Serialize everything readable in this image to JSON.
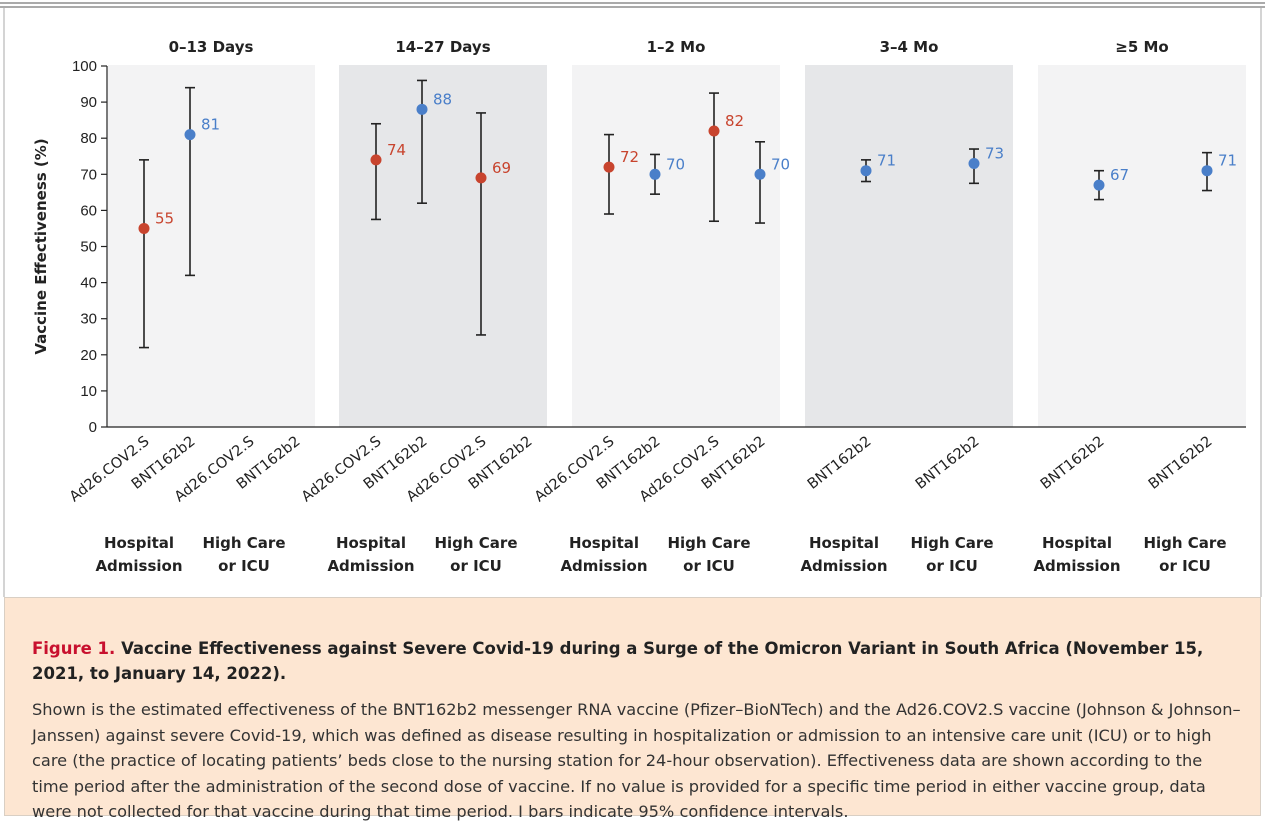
{
  "chart_data": {
    "type": "scatter",
    "ylabel": "Vaccine Effectiveness (%)",
    "ylim": [
      0,
      100
    ],
    "yticks": [
      0,
      10,
      20,
      30,
      40,
      50,
      60,
      70,
      80,
      90,
      100
    ],
    "grid": false,
    "colors": {
      "Ad26.COV2.S": "#c8442e",
      "BNT162b2": "#4a7fc9"
    },
    "panels": [
      {
        "title": "0–13 Days",
        "shaded": false,
        "categories": [
          "Ad26.COV2.S",
          "BNT162b2",
          "Ad26.COV2.S",
          "BNT162b2"
        ],
        "groups": [
          {
            "line1": "Hospital",
            "line2": "Admission"
          },
          {
            "line1": "High Care",
            "line2": "or ICU"
          }
        ],
        "points": [
          {
            "slot": 0,
            "vaccine": "Ad26.COV2.S",
            "value": 55,
            "low": 22,
            "high": 74,
            "label": "55"
          },
          {
            "slot": 1,
            "vaccine": "BNT162b2",
            "value": 81,
            "low": 42,
            "high": 94,
            "label": "81"
          }
        ]
      },
      {
        "title": "14–27 Days",
        "shaded": true,
        "categories": [
          "Ad26.COV2.S",
          "BNT162b2",
          "Ad26.COV2.S",
          "BNT162b2"
        ],
        "groups": [
          {
            "line1": "Hospital",
            "line2": "Admission"
          },
          {
            "line1": "High Care",
            "line2": "or ICU"
          }
        ],
        "points": [
          {
            "slot": 0,
            "vaccine": "Ad26.COV2.S",
            "value": 74,
            "low": 57.5,
            "high": 84,
            "label": "74"
          },
          {
            "slot": 1,
            "vaccine": "BNT162b2",
            "value": 88,
            "low": 62,
            "high": 96,
            "label": "88"
          },
          {
            "slot": 2,
            "vaccine": "Ad26.COV2.S",
            "value": 69,
            "low": 25.5,
            "high": 87,
            "label": "69"
          }
        ]
      },
      {
        "title": "1–2 Mo",
        "shaded": false,
        "categories": [
          "Ad26.COV2.S",
          "BNT162b2",
          "Ad26.COV2.S",
          "BNT162b2"
        ],
        "groups": [
          {
            "line1": "Hospital",
            "line2": "Admission"
          },
          {
            "line1": "High Care",
            "line2": "or ICU"
          }
        ],
        "points": [
          {
            "slot": 0,
            "vaccine": "Ad26.COV2.S",
            "value": 72,
            "low": 59,
            "high": 81,
            "label": "72"
          },
          {
            "slot": 1,
            "vaccine": "BNT162b2",
            "value": 70,
            "low": 64.5,
            "high": 75.5,
            "label": "70"
          },
          {
            "slot": 2,
            "vaccine": "Ad26.COV2.S",
            "value": 82,
            "low": 57,
            "high": 92.5,
            "label": "82"
          },
          {
            "slot": 3,
            "vaccine": "BNT162b2",
            "value": 70,
            "low": 56.5,
            "high": 79,
            "label": "70"
          }
        ]
      },
      {
        "title": "3–4 Mo",
        "shaded": true,
        "categories": [
          "BNT162b2",
          "BNT162b2"
        ],
        "groups": [
          {
            "line1": "Hospital",
            "line2": "Admission"
          },
          {
            "line1": "High Care",
            "line2": "or ICU"
          }
        ],
        "points": [
          {
            "slot": 0,
            "vaccine": "BNT162b2",
            "value": 71,
            "low": 68,
            "high": 74,
            "label": "71"
          },
          {
            "slot": 1,
            "vaccine": "BNT162b2",
            "value": 73,
            "low": 67.5,
            "high": 77,
            "label": "73"
          }
        ]
      },
      {
        "title": "≥5 Mo",
        "shaded": false,
        "categories": [
          "BNT162b2",
          "BNT162b2"
        ],
        "groups": [
          {
            "line1": "Hospital",
            "line2": "Admission"
          },
          {
            "line1": "High Care",
            "line2": "or ICU"
          }
        ],
        "points": [
          {
            "slot": 0,
            "vaccine": "BNT162b2",
            "value": 67,
            "low": 63,
            "high": 71,
            "label": "67"
          },
          {
            "slot": 1,
            "vaccine": "BNT162b2",
            "value": 71,
            "low": 65.5,
            "high": 76,
            "label": "71"
          }
        ]
      }
    ]
  },
  "caption": {
    "figure_label": "Figure 1.",
    "title": "Vaccine Effectiveness against Severe Covid-19 during a Surge of the Omicron Variant in South Africa (November 15, 2021, to January 14, 2022).",
    "body": "Shown is the estimated effectiveness of the BNT162b2 messenger RNA vaccine (Pfizer–BioNTech) and the Ad26.COV2.S vaccine (Johnson & Johnson–Janssen) against severe Covid-19, which was defined as disease resulting in hospitalization or admission to an intensive care unit (ICU) or to high care (the practice of locating patients’ beds close to the nursing station for 24-hour observation). Effectiveness data are shown according to the time period after the administration of the second dose of vaccine. If no value is provided for a specific time period in either vaccine group, data were not collected for that vaccine during that time period. I bars indicate 95% confidence intervals.",
    "colors": {
      "figure_label": "#c8102e",
      "background": "#fde6d2"
    }
  }
}
